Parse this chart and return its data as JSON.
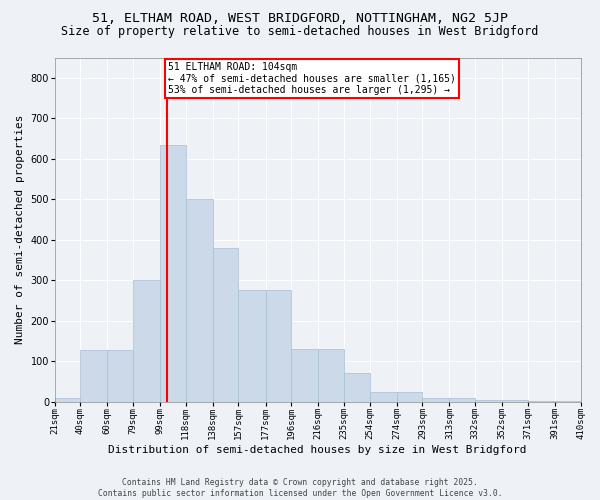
{
  "title1": "51, ELTHAM ROAD, WEST BRIDGFORD, NOTTINGHAM, NG2 5JP",
  "title2": "Size of property relative to semi-detached houses in West Bridgford",
  "xlabel": "Distribution of semi-detached houses by size in West Bridgford",
  "ylabel": "Number of semi-detached properties",
  "bar_values": [
    8,
    128,
    128,
    300,
    635,
    500,
    380,
    275,
    275,
    130,
    130,
    70,
    25,
    25,
    10,
    8,
    5,
    3,
    2,
    1
  ],
  "bin_edges": [
    21,
    40,
    60,
    79,
    99,
    118,
    138,
    157,
    177,
    196,
    216,
    235,
    254,
    274,
    293,
    313,
    332,
    352,
    371,
    391,
    410
  ],
  "tick_labels": [
    "21sqm",
    "40sqm",
    "60sqm",
    "79sqm",
    "99sqm",
    "118sqm",
    "138sqm",
    "157sqm",
    "177sqm",
    "196sqm",
    "216sqm",
    "235sqm",
    "254sqm",
    "274sqm",
    "293sqm",
    "313sqm",
    "332sqm",
    "352sqm",
    "371sqm",
    "391sqm",
    "410sqm"
  ],
  "bar_color": "#ccd9e8",
  "bar_edge_color": "#a8bed4",
  "vline_x": 104,
  "vline_color": "red",
  "annotation_text": "51 ELTHAM ROAD: 104sqm\n← 47% of semi-detached houses are smaller (1,165)\n53% of semi-detached houses are larger (1,295) →",
  "annotation_box_color": "white",
  "annotation_box_edge": "red",
  "ylim": [
    0,
    850
  ],
  "yticks": [
    0,
    100,
    200,
    300,
    400,
    500,
    600,
    700,
    800
  ],
  "footer_text": "Contains HM Land Registry data © Crown copyright and database right 2025.\nContains public sector information licensed under the Open Government Licence v3.0.",
  "background_color": "#eef2f7",
  "plot_bg_color": "#eef2f7",
  "grid_color": "white",
  "title_fontsize": 9.5,
  "subtitle_fontsize": 8.5,
  "tick_fontsize": 6.5,
  "label_fontsize": 8,
  "footer_fontsize": 5.8
}
